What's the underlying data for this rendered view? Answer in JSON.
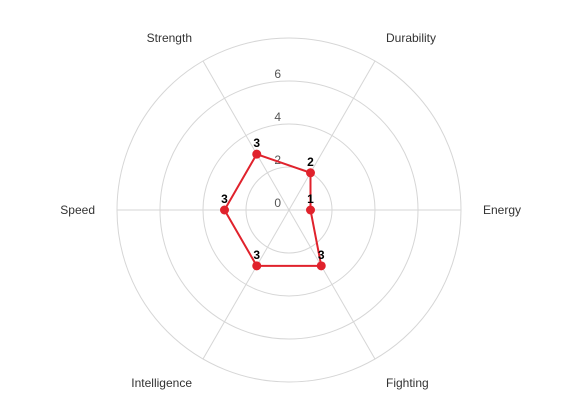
{
  "chart_data": {
    "type": "radar",
    "title": "",
    "axes": [
      "Durability",
      "Energy",
      "Fighting",
      "Intelligence",
      "Speed",
      "Strength"
    ],
    "ticks": [
      0,
      2,
      4,
      6
    ],
    "rlim": [
      0,
      8
    ],
    "grid": true,
    "legend": "none",
    "series": [
      {
        "values": [
          2,
          1,
          3,
          3,
          3,
          3
        ],
        "color": "#e0222c"
      }
    ],
    "colors": {
      "grid": "#d6d6d6",
      "series": "#e0222c"
    }
  }
}
